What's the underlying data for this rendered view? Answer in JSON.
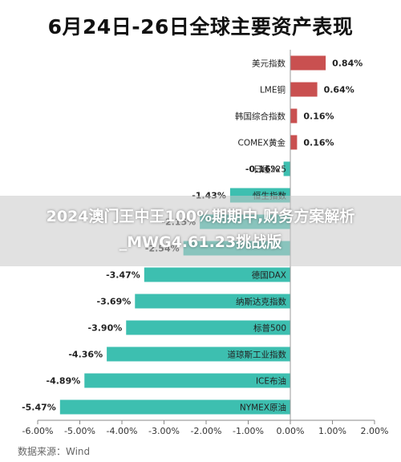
{
  "title": "6月24日-26日全球主要资产表现",
  "overlay_text": "2024澳门王中王100%期期中,财务方案解析_MWG4.61.23挑战版",
  "source": "数据来源：Wind",
  "colors": {
    "positive": "#c95050",
    "negative": "#3dbfb0",
    "axis": "#888888",
    "text": "#222222"
  },
  "chart_data": {
    "type": "bar",
    "orientation": "horizontal",
    "categories": [
      "美元指数",
      "LME铜",
      "韩国综合指数",
      "COMEX黄金",
      "日经225",
      "恒生指数",
      "",
      "",
      "德国DAX",
      "纳斯达克指数",
      "标普500",
      "道琼斯工业指数",
      "ICE布油",
      "NYMEX原油"
    ],
    "values": [
      0.84,
      0.64,
      0.16,
      0.16,
      -0.16,
      -1.43,
      -2.15,
      -2.54,
      -3.47,
      -3.69,
      -3.9,
      -4.36,
      -4.89,
      -5.47
    ],
    "data_labels": [
      "0.84%",
      "0.64%",
      "0.16%",
      "0.16%",
      "-0.16%",
      "-1.43%",
      "-2.15%",
      "-2.54%",
      "-3.47%",
      "-3.69%",
      "-3.90%",
      "-4.36%",
      "-4.89%",
      "-5.47%"
    ],
    "xlim": [
      -6,
      2
    ],
    "xticks": [
      -6,
      -5,
      -4,
      -3,
      -2,
      -1,
      0,
      1,
      2
    ],
    "xtick_labels": [
      "-6.00%",
      "-5.00%",
      "-4.00%",
      "-3.00%",
      "-2.00%",
      "-1.00%",
      "0.00%",
      "1.00%",
      "2.00%"
    ],
    "grid": false,
    "legend": "none"
  }
}
